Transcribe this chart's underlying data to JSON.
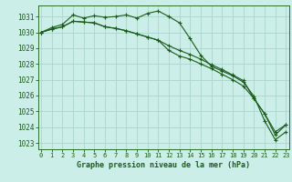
{
  "title": "Graphe pression niveau de la mer (hPa)",
  "background_color": "#cceee8",
  "grid_color": "#aad4cc",
  "line_color": "#1a5c1a",
  "spine_color": "#2d6e2d",
  "xlim": [
    -0.3,
    23.3
  ],
  "ylim": [
    1022.6,
    1031.7
  ],
  "yticks": [
    1023,
    1024,
    1025,
    1026,
    1027,
    1028,
    1029,
    1030,
    1031
  ],
  "xticks": [
    0,
    1,
    2,
    3,
    4,
    5,
    6,
    7,
    8,
    9,
    10,
    11,
    12,
    13,
    14,
    15,
    16,
    17,
    18,
    19,
    20,
    21,
    22,
    23
  ],
  "series": [
    [
      1030.0,
      1030.3,
      1030.5,
      1031.1,
      1030.9,
      1031.05,
      1030.95,
      1031.0,
      1031.1,
      1030.9,
      1031.2,
      1031.35,
      1031.0,
      1030.6,
      1029.6,
      1028.55,
      1027.85,
      1027.55,
      1027.25,
      1026.85,
      1025.95,
      1024.4,
      1023.2,
      1023.7
    ],
    [
      1030.0,
      1030.2,
      1030.35,
      1030.7,
      1030.65,
      1030.6,
      1030.35,
      1030.25,
      1030.1,
      1029.9,
      1029.7,
      1029.5,
      1029.15,
      1028.85,
      1028.6,
      1028.3,
      1027.95,
      1027.65,
      1027.3,
      1026.95,
      1025.8,
      1024.85,
      1023.7,
      1024.15
    ],
    [
      1030.0,
      1030.2,
      1030.35,
      1030.7,
      1030.65,
      1030.6,
      1030.35,
      1030.25,
      1030.1,
      1029.9,
      1029.7,
      1029.5,
      1028.85,
      1028.5,
      1028.3,
      1028.0,
      1027.7,
      1027.35,
      1027.0,
      1026.6,
      1025.8,
      1024.85,
      1023.5,
      1024.15
    ]
  ],
  "ylabel_fontsize": 5.5,
  "xlabel_fontsize": 6.0,
  "tick_fontsize": 5.0,
  "linewidth": 0.8,
  "markersize": 2.0
}
